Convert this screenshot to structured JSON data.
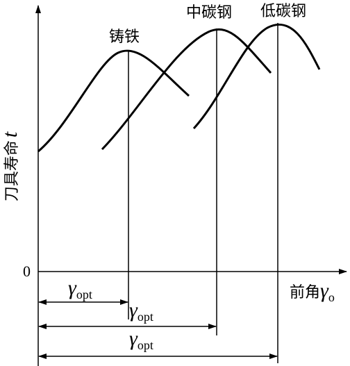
{
  "axes": {
    "y_label": {
      "text": "刀具寿命",
      "symbol": "t"
    },
    "x_label": {
      "text": "前角",
      "symbol": "γ",
      "subscript": "o"
    },
    "origin": "0"
  },
  "curves": [
    {
      "label": "铸铁"
    },
    {
      "label": "中碳钢"
    },
    {
      "label": "低碳钢"
    }
  ],
  "optimum_labels": [
    {
      "symbol": "γ",
      "subscript": "opt"
    },
    {
      "symbol": "γ",
      "subscript": "opt"
    },
    {
      "symbol": "γ",
      "subscript": "opt"
    }
  ]
}
